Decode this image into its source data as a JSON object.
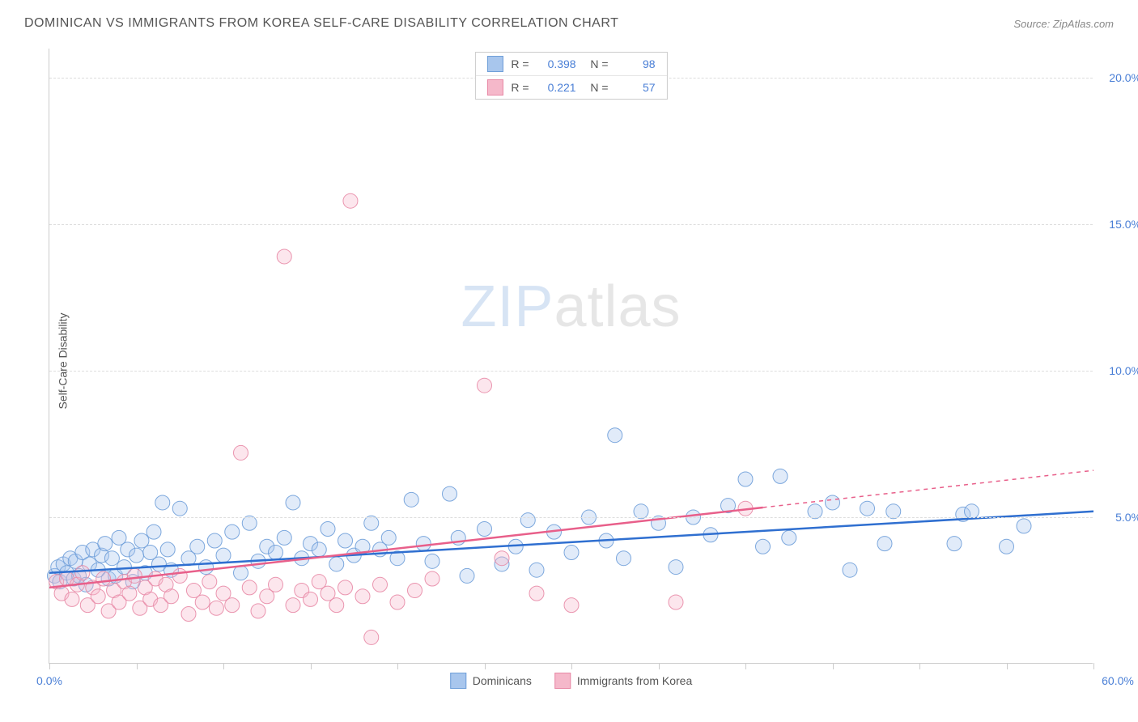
{
  "title": "DOMINICAN VS IMMIGRANTS FROM KOREA SELF-CARE DISABILITY CORRELATION CHART",
  "source": "Source: ZipAtlas.com",
  "chart": {
    "type": "scatter",
    "y_label": "Self-Care Disability",
    "xlim": [
      0,
      60
    ],
    "ylim": [
      0,
      21
    ],
    "x_ticks": [
      0,
      5,
      10,
      15,
      20,
      25,
      30,
      35,
      40,
      45,
      50,
      55,
      60
    ],
    "x_tick_labels": {
      "0": "0.0%",
      "60": "60.0%"
    },
    "y_ticks": [
      5,
      10,
      15,
      20
    ],
    "y_tick_labels": [
      "5.0%",
      "10.0%",
      "15.0%",
      "20.0%"
    ],
    "grid_color": "#dddddd",
    "background_color": "#ffffff",
    "axis_color": "#cccccc",
    "marker_radius": 9,
    "watermark": {
      "bold": "ZIP",
      "thin": "atlas"
    },
    "series": [
      {
        "key": "dominicans",
        "label": "Dominicans",
        "fill": "#a8c6ed",
        "stroke": "#6f9fd9",
        "line_color": "#2f6fd0",
        "r_value": "0.398",
        "n_value": "98",
        "trend": {
          "x1": 0,
          "y1": 3.1,
          "x2": 60,
          "y2": 5.2,
          "dash_from_x": null
        },
        "points": [
          [
            0.3,
            3.0
          ],
          [
            0.5,
            3.3
          ],
          [
            0.6,
            2.8
          ],
          [
            0.8,
            3.4
          ],
          [
            1.0,
            3.1
          ],
          [
            1.2,
            3.6
          ],
          [
            1.4,
            2.9
          ],
          [
            1.5,
            3.5
          ],
          [
            1.7,
            3.0
          ],
          [
            1.9,
            3.8
          ],
          [
            2.1,
            2.7
          ],
          [
            2.3,
            3.4
          ],
          [
            2.5,
            3.9
          ],
          [
            2.8,
            3.2
          ],
          [
            3.0,
            3.7
          ],
          [
            3.2,
            4.1
          ],
          [
            3.4,
            2.9
          ],
          [
            3.6,
            3.6
          ],
          [
            3.8,
            3.0
          ],
          [
            4.0,
            4.3
          ],
          [
            4.3,
            3.3
          ],
          [
            4.5,
            3.9
          ],
          [
            4.8,
            2.8
          ],
          [
            5.0,
            3.7
          ],
          [
            5.3,
            4.2
          ],
          [
            5.5,
            3.1
          ],
          [
            5.8,
            3.8
          ],
          [
            6.0,
            4.5
          ],
          [
            6.3,
            3.4
          ],
          [
            6.5,
            5.5
          ],
          [
            6.8,
            3.9
          ],
          [
            7.0,
            3.2
          ],
          [
            7.5,
            5.3
          ],
          [
            8.0,
            3.6
          ],
          [
            8.5,
            4.0
          ],
          [
            9.0,
            3.3
          ],
          [
            9.5,
            4.2
          ],
          [
            10.0,
            3.7
          ],
          [
            10.5,
            4.5
          ],
          [
            11.0,
            3.1
          ],
          [
            11.5,
            4.8
          ],
          [
            12.0,
            3.5
          ],
          [
            12.5,
            4.0
          ],
          [
            13.0,
            3.8
          ],
          [
            13.5,
            4.3
          ],
          [
            14.0,
            5.5
          ],
          [
            14.5,
            3.6
          ],
          [
            15.0,
            4.1
          ],
          [
            15.5,
            3.9
          ],
          [
            16.0,
            4.6
          ],
          [
            16.5,
            3.4
          ],
          [
            17.0,
            4.2
          ],
          [
            17.5,
            3.7
          ],
          [
            18.0,
            4.0
          ],
          [
            18.5,
            4.8
          ],
          [
            19.0,
            3.9
          ],
          [
            19.5,
            4.3
          ],
          [
            20.0,
            3.6
          ],
          [
            20.8,
            5.6
          ],
          [
            21.5,
            4.1
          ],
          [
            22.0,
            3.5
          ],
          [
            23.0,
            5.8
          ],
          [
            23.5,
            4.3
          ],
          [
            24.0,
            3.0
          ],
          [
            25.0,
            4.6
          ],
          [
            26.0,
            3.4
          ],
          [
            26.8,
            4.0
          ],
          [
            27.5,
            4.9
          ],
          [
            28.0,
            3.2
          ],
          [
            29.0,
            4.5
          ],
          [
            30.0,
            3.8
          ],
          [
            31.0,
            5.0
          ],
          [
            32.0,
            4.2
          ],
          [
            32.5,
            7.8
          ],
          [
            33.0,
            3.6
          ],
          [
            34.0,
            5.2
          ],
          [
            35.0,
            4.8
          ],
          [
            36.0,
            3.3
          ],
          [
            37.0,
            5.0
          ],
          [
            38.0,
            4.4
          ],
          [
            39.0,
            5.4
          ],
          [
            40.0,
            6.3
          ],
          [
            41.0,
            4.0
          ],
          [
            42.0,
            6.4
          ],
          [
            42.5,
            4.3
          ],
          [
            44.0,
            5.2
          ],
          [
            45.0,
            5.5
          ],
          [
            46.0,
            3.2
          ],
          [
            47.0,
            5.3
          ],
          [
            48.0,
            4.1
          ],
          [
            48.5,
            5.2
          ],
          [
            52.0,
            4.1
          ],
          [
            52.5,
            5.1
          ],
          [
            53.0,
            5.2
          ],
          [
            55.0,
            4.0
          ],
          [
            56.0,
            4.7
          ]
        ]
      },
      {
        "key": "korea",
        "label": "Immigrants from Korea",
        "fill": "#f5b8ca",
        "stroke": "#e889a6",
        "line_color": "#e85f8a",
        "r_value": "0.221",
        "n_value": "57",
        "trend": {
          "x1": 0,
          "y1": 2.6,
          "x2": 60,
          "y2": 6.6,
          "dash_from_x": 41
        },
        "points": [
          [
            0.4,
            2.8
          ],
          [
            0.7,
            2.4
          ],
          [
            1.0,
            2.9
          ],
          [
            1.3,
            2.2
          ],
          [
            1.6,
            2.7
          ],
          [
            1.9,
            3.1
          ],
          [
            2.2,
            2.0
          ],
          [
            2.5,
            2.6
          ],
          [
            2.8,
            2.3
          ],
          [
            3.1,
            2.9
          ],
          [
            3.4,
            1.8
          ],
          [
            3.7,
            2.5
          ],
          [
            4.0,
            2.1
          ],
          [
            4.3,
            2.8
          ],
          [
            4.6,
            2.4
          ],
          [
            4.9,
            3.0
          ],
          [
            5.2,
            1.9
          ],
          [
            5.5,
            2.6
          ],
          [
            5.8,
            2.2
          ],
          [
            6.1,
            2.9
          ],
          [
            6.4,
            2.0
          ],
          [
            6.7,
            2.7
          ],
          [
            7.0,
            2.3
          ],
          [
            7.5,
            3.0
          ],
          [
            8.0,
            1.7
          ],
          [
            8.3,
            2.5
          ],
          [
            8.8,
            2.1
          ],
          [
            9.2,
            2.8
          ],
          [
            9.6,
            1.9
          ],
          [
            10.0,
            2.4
          ],
          [
            10.5,
            2.0
          ],
          [
            11.0,
            7.2
          ],
          [
            11.5,
            2.6
          ],
          [
            12.0,
            1.8
          ],
          [
            12.5,
            2.3
          ],
          [
            13.0,
            2.7
          ],
          [
            13.5,
            13.9
          ],
          [
            14.0,
            2.0
          ],
          [
            14.5,
            2.5
          ],
          [
            15.0,
            2.2
          ],
          [
            15.5,
            2.8
          ],
          [
            16.0,
            2.4
          ],
          [
            16.5,
            2.0
          ],
          [
            17.0,
            2.6
          ],
          [
            17.3,
            15.8
          ],
          [
            18.0,
            2.3
          ],
          [
            18.5,
            0.9
          ],
          [
            19.0,
            2.7
          ],
          [
            20.0,
            2.1
          ],
          [
            21.0,
            2.5
          ],
          [
            22.0,
            2.9
          ],
          [
            25.0,
            9.5
          ],
          [
            26.0,
            3.6
          ],
          [
            28.0,
            2.4
          ],
          [
            30.0,
            2.0
          ],
          [
            36.0,
            2.1
          ],
          [
            40.0,
            5.3
          ]
        ]
      }
    ]
  }
}
